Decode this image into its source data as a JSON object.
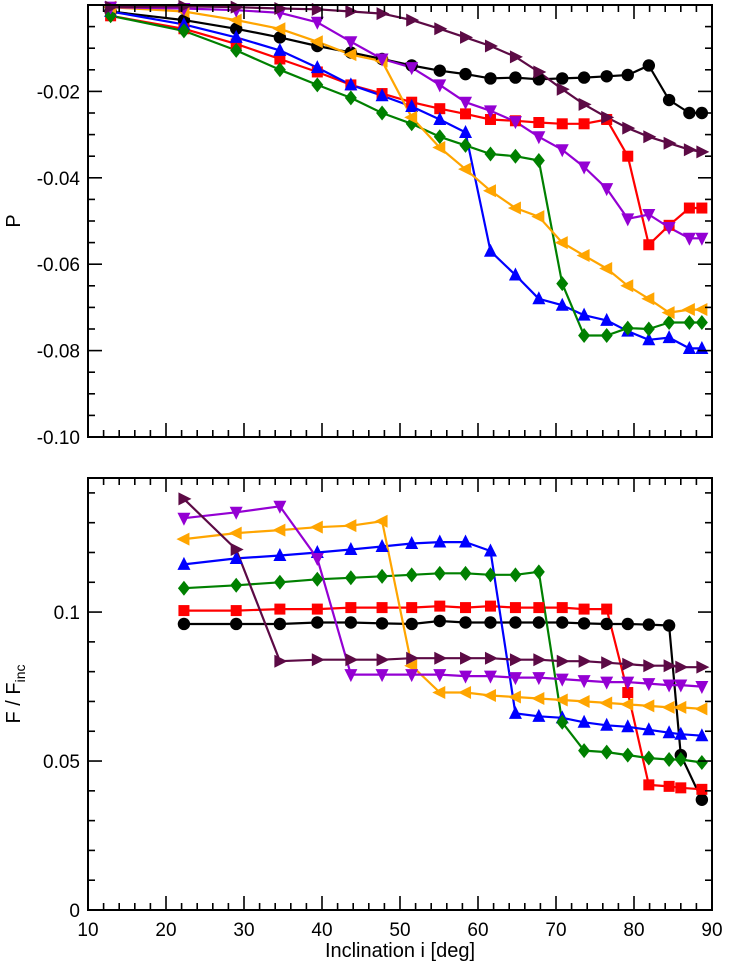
{
  "chart_data": [
    {
      "type": "line",
      "id": "top",
      "ylabel": "P",
      "xlabel": "",
      "xlim": [
        10,
        90
      ],
      "ylim": [
        -0.1,
        0.0
      ],
      "xticks": [
        10,
        20,
        30,
        40,
        50,
        60,
        70,
        80,
        90
      ],
      "yticks": [
        -0.1,
        -0.08,
        -0.06,
        -0.04,
        -0.02
      ],
      "ytick_labels": [
        "-0.10",
        "-0.08",
        "-0.06",
        "-0.04",
        "-0.02"
      ],
      "series": [
        {
          "name": "black",
          "color": "#000000",
          "marker": "circle",
          "x": [
            12.9,
            22.3,
            29.0,
            34.6,
            39.4,
            43.7,
            47.7,
            51.5,
            55.1,
            58.4,
            61.6,
            64.8,
            67.8,
            70.8,
            73.6,
            76.5,
            79.2,
            81.9,
            84.5,
            87.1,
            88.7
          ],
          "y": [
            -0.0015,
            -0.0035,
            -0.0055,
            -0.0075,
            -0.0095,
            -0.011,
            -0.0125,
            -0.014,
            -0.0152,
            -0.016,
            -0.017,
            -0.0168,
            -0.0172,
            -0.017,
            -0.0168,
            -0.0165,
            -0.0162,
            -0.014,
            -0.022,
            -0.025,
            -0.025
          ]
        },
        {
          "name": "red",
          "color": "#ff0000",
          "marker": "square",
          "x": [
            12.9,
            22.3,
            29.0,
            34.6,
            39.4,
            43.7,
            47.7,
            51.5,
            55.1,
            58.4,
            61.6,
            64.8,
            67.8,
            70.8,
            73.6,
            76.5,
            79.2,
            81.9,
            84.5,
            87.1,
            88.7
          ],
          "y": [
            -0.0025,
            -0.0055,
            -0.009,
            -0.0125,
            -0.0155,
            -0.0185,
            -0.0205,
            -0.0225,
            -0.024,
            -0.0252,
            -0.0265,
            -0.0268,
            -0.0272,
            -0.0275,
            -0.0275,
            -0.0265,
            -0.035,
            -0.0555,
            -0.051,
            -0.047,
            -0.047
          ]
        },
        {
          "name": "blue",
          "color": "#0000ff",
          "marker": "triangle-up",
          "x": [
            12.9,
            22.3,
            29.0,
            34.6,
            39.4,
            43.7,
            47.7,
            51.5,
            55.1,
            58.4,
            61.6,
            64.8,
            67.8,
            70.8,
            73.6,
            76.5,
            79.2,
            81.9,
            84.5,
            87.1,
            88.7
          ],
          "y": [
            -0.0015,
            -0.0045,
            -0.0075,
            -0.0105,
            -0.0145,
            -0.0185,
            -0.021,
            -0.0235,
            -0.0265,
            -0.0295,
            -0.057,
            -0.0625,
            -0.068,
            -0.0695,
            -0.0718,
            -0.073,
            -0.0755,
            -0.0775,
            -0.077,
            -0.0795,
            -0.0795
          ]
        },
        {
          "name": "green",
          "color": "#008000",
          "marker": "diamond",
          "x": [
            12.9,
            22.3,
            29.0,
            34.6,
            39.4,
            43.7,
            47.7,
            51.5,
            55.1,
            58.4,
            61.6,
            64.8,
            67.8,
            70.8,
            73.6,
            76.5,
            79.2,
            81.9,
            84.5,
            87.1,
            88.7
          ],
          "y": [
            -0.0025,
            -0.006,
            -0.0105,
            -0.015,
            -0.0185,
            -0.0215,
            -0.025,
            -0.0275,
            -0.0305,
            -0.0325,
            -0.0345,
            -0.035,
            -0.036,
            -0.0645,
            -0.0765,
            -0.0765,
            -0.0748,
            -0.075,
            -0.0735,
            -0.0735,
            -0.0735
          ]
        },
        {
          "name": "orange",
          "color": "#ffa500",
          "marker": "triangle-left",
          "x": [
            12.9,
            22.3,
            29.0,
            34.6,
            39.4,
            43.7,
            47.7,
            51.5,
            55.1,
            58.4,
            61.6,
            64.8,
            67.8,
            70.8,
            73.6,
            76.5,
            79.2,
            81.9,
            84.5,
            87.1,
            88.7
          ],
          "y": [
            -0.0005,
            -0.0015,
            -0.0035,
            -0.0055,
            -0.0085,
            -0.0115,
            -0.013,
            -0.026,
            -0.033,
            -0.038,
            -0.043,
            -0.047,
            -0.049,
            -0.055,
            -0.058,
            -0.061,
            -0.065,
            -0.068,
            -0.0712,
            -0.0705,
            -0.0705
          ]
        },
        {
          "name": "purple",
          "color": "#9400d3",
          "marker": "triangle-down",
          "x": [
            12.9,
            22.3,
            29.0,
            34.6,
            39.4,
            43.7,
            47.7,
            51.5,
            55.1,
            58.4,
            61.6,
            64.8,
            67.8,
            70.8,
            73.6,
            76.5,
            79.2,
            81.9,
            84.5,
            87.1,
            88.7
          ],
          "y": [
            -0.0005,
            -0.0008,
            -0.0012,
            -0.0018,
            -0.004,
            -0.0085,
            -0.0125,
            -0.0145,
            -0.0185,
            -0.0225,
            -0.0245,
            -0.027,
            -0.0305,
            -0.0335,
            -0.0375,
            -0.0425,
            -0.0495,
            -0.0485,
            -0.0515,
            -0.054,
            -0.054
          ]
        },
        {
          "name": "maroon",
          "color": "#5c0a45",
          "marker": "triangle-right",
          "x": [
            12.9,
            22.3,
            29.0,
            34.6,
            39.4,
            43.7,
            47.7,
            51.5,
            55.1,
            58.4,
            61.6,
            64.8,
            67.8,
            70.8,
            73.6,
            76.5,
            79.2,
            81.9,
            84.5,
            87.1,
            88.7
          ],
          "y": [
            -0.0005,
            -0.0003,
            -0.0005,
            -0.0008,
            -0.001,
            -0.0015,
            -0.002,
            -0.0035,
            -0.0055,
            -0.0075,
            -0.0095,
            -0.012,
            -0.0155,
            -0.0195,
            -0.023,
            -0.026,
            -0.0285,
            -0.0305,
            -0.032,
            -0.0335,
            -0.034
          ]
        }
      ]
    },
    {
      "type": "line",
      "id": "bottom",
      "ylabel_main": "F / F",
      "ylabel_sub": "inc",
      "xlabel": "Inclination i [deg]",
      "xlim": [
        10,
        90
      ],
      "ylim": [
        0.0,
        0.145
      ],
      "xticks": [
        10,
        20,
        30,
        40,
        50,
        60,
        70,
        80,
        90
      ],
      "xtick_labels": [
        "10",
        "20",
        "30",
        "40",
        "50",
        "60",
        "70",
        "80",
        "90"
      ],
      "yticks": [
        0.0,
        0.05,
        0.1
      ],
      "ytick_labels": [
        "0",
        "0.05",
        "0.1"
      ],
      "series": [
        {
          "name": "black",
          "color": "#000000",
          "marker": "circle",
          "x": [
            22.3,
            29.0,
            34.6,
            39.4,
            43.7,
            47.7,
            51.5,
            55.1,
            58.4,
            61.6,
            64.8,
            67.8,
            70.8,
            73.6,
            76.5,
            79.2,
            81.9,
            84.5,
            86.0,
            88.7
          ],
          "y": [
            0.096,
            0.096,
            0.096,
            0.0965,
            0.0965,
            0.0962,
            0.096,
            0.097,
            0.0965,
            0.0965,
            0.0965,
            0.0965,
            0.0965,
            0.0962,
            0.096,
            0.096,
            0.0958,
            0.0955,
            0.052,
            0.037
          ]
        },
        {
          "name": "red",
          "color": "#ff0000",
          "marker": "square",
          "x": [
            22.3,
            29.0,
            34.6,
            39.4,
            43.7,
            47.7,
            51.5,
            55.1,
            58.4,
            61.6,
            64.8,
            67.8,
            70.8,
            73.6,
            76.5,
            79.2,
            81.9,
            84.5,
            86.0,
            88.7
          ],
          "y": [
            0.1005,
            0.1005,
            0.101,
            0.101,
            0.1015,
            0.1015,
            0.1015,
            0.102,
            0.1015,
            0.102,
            0.1015,
            0.1015,
            0.1015,
            0.101,
            0.101,
            0.073,
            0.042,
            0.0415,
            0.041,
            0.0405
          ]
        },
        {
          "name": "blue",
          "color": "#0000ff",
          "marker": "triangle-up",
          "x": [
            22.3,
            29.0,
            34.6,
            39.4,
            43.7,
            47.7,
            51.5,
            55.1,
            58.4,
            61.6,
            64.8,
            67.8,
            70.8,
            73.6,
            76.5,
            79.2,
            81.9,
            84.5,
            86.0,
            88.7
          ],
          "y": [
            0.116,
            0.118,
            0.119,
            0.12,
            0.121,
            0.122,
            0.123,
            0.1235,
            0.1235,
            0.1205,
            0.066,
            0.065,
            0.0645,
            0.063,
            0.062,
            0.0615,
            0.0605,
            0.0595,
            0.059,
            0.0585
          ]
        },
        {
          "name": "green",
          "color": "#008000",
          "marker": "diamond",
          "x": [
            22.3,
            29.0,
            34.6,
            39.4,
            43.7,
            47.7,
            51.5,
            55.1,
            58.4,
            61.6,
            64.8,
            67.8,
            70.8,
            73.6,
            76.5,
            79.2,
            81.9,
            84.5,
            86.0,
            88.7
          ],
          "y": [
            0.108,
            0.109,
            0.11,
            0.111,
            0.1115,
            0.112,
            0.1125,
            0.113,
            0.113,
            0.1125,
            0.1125,
            0.1135,
            0.063,
            0.0535,
            0.053,
            0.052,
            0.051,
            0.0505,
            0.0505,
            0.0495
          ]
        },
        {
          "name": "orange",
          "color": "#ffa500",
          "marker": "triangle-left",
          "x": [
            22.3,
            29.0,
            34.6,
            39.4,
            43.7,
            47.7,
            51.5,
            55.1,
            58.4,
            61.6,
            64.8,
            67.8,
            70.8,
            73.6,
            76.5,
            79.2,
            81.9,
            84.5,
            86.0,
            88.7
          ],
          "y": [
            0.1245,
            0.1265,
            0.1275,
            0.1285,
            0.129,
            0.1305,
            0.082,
            0.073,
            0.073,
            0.072,
            0.0715,
            0.071,
            0.0705,
            0.07,
            0.0695,
            0.069,
            0.0685,
            0.068,
            0.068,
            0.0675
          ]
        },
        {
          "name": "purple",
          "color": "#9400d3",
          "marker": "triangle-down",
          "x": [
            22.3,
            29.0,
            34.6,
            39.4,
            43.7,
            47.7,
            51.5,
            55.1,
            58.4,
            61.6,
            64.8,
            67.8,
            70.8,
            73.6,
            76.5,
            79.2,
            81.9,
            84.5,
            86.0,
            88.7
          ],
          "y": [
            0.1315,
            0.1335,
            0.1355,
            0.118,
            0.079,
            0.079,
            0.079,
            0.079,
            0.0785,
            0.0785,
            0.078,
            0.078,
            0.0775,
            0.077,
            0.0765,
            0.0765,
            0.076,
            0.0755,
            0.0755,
            0.075
          ]
        },
        {
          "name": "maroon",
          "color": "#5c0a45",
          "marker": "triangle-right",
          "x": [
            22.3,
            29.0,
            34.6,
            39.4,
            43.7,
            47.7,
            51.5,
            55.1,
            58.4,
            61.6,
            64.8,
            67.8,
            70.8,
            73.6,
            76.5,
            79.2,
            81.9,
            84.5,
            86.0,
            88.7
          ],
          "y": [
            0.138,
            0.121,
            0.0835,
            0.084,
            0.084,
            0.084,
            0.0845,
            0.0845,
            0.0845,
            0.0845,
            0.084,
            0.084,
            0.0835,
            0.0835,
            0.083,
            0.0825,
            0.082,
            0.082,
            0.0815,
            0.0815
          ]
        }
      ]
    }
  ]
}
